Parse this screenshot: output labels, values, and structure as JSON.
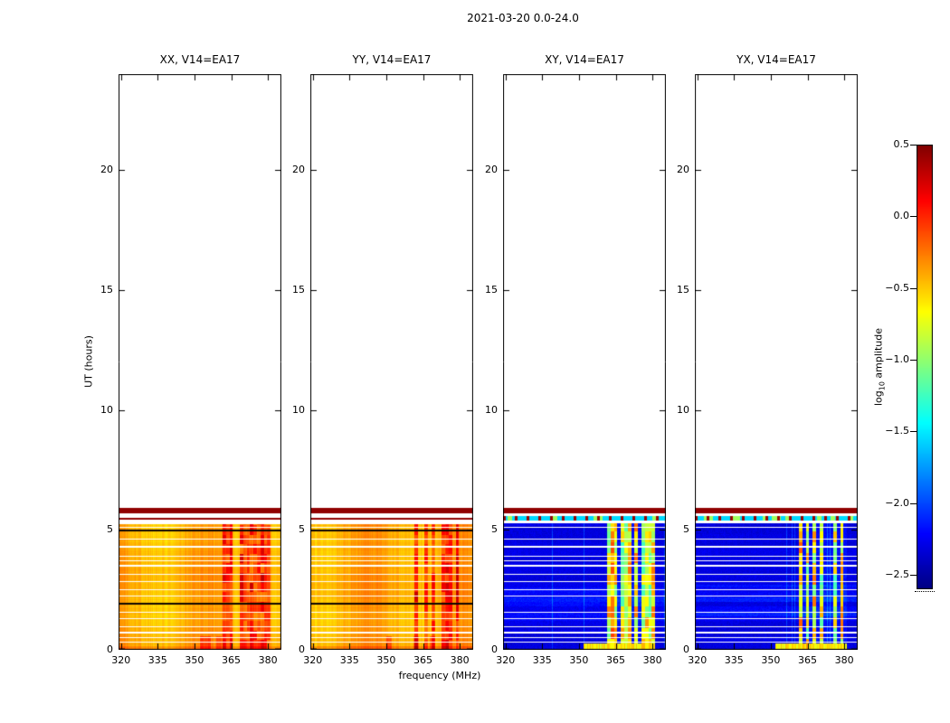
{
  "chart_data": {
    "type": "heatmap",
    "title": "2021-03-20 0.0-24.0",
    "xlabel": "frequency (MHz)",
    "ylabel": "UT (hours)",
    "xlim": [
      319,
      385.5
    ],
    "ylim": [
      0,
      24
    ],
    "xticks": [
      320,
      335,
      350,
      365,
      380
    ],
    "yticks": [
      0,
      5,
      10,
      15,
      20
    ],
    "colormap": "jet",
    "panels": [
      {
        "id": "XX",
        "label": "XX, V14=EA17",
        "kind": "parallel",
        "base": -0.42,
        "seed": 1
      },
      {
        "id": "YY",
        "label": "YY, V14=EA17",
        "kind": "parallel",
        "base": -0.4,
        "seed": 2
      },
      {
        "id": "XY",
        "label": "XY, V14=EA17",
        "kind": "cross",
        "base": -2.3,
        "seed": 3
      },
      {
        "id": "YX",
        "label": "YX, V14=EA17",
        "kind": "cross",
        "base": -2.3,
        "seed": 4
      }
    ],
    "colorbar": {
      "label_pre": "log",
      "label_sub": "10",
      "label_post": " amplitude",
      "ticks": [
        0.5,
        0.0,
        -0.5,
        -1.0,
        -1.5,
        -2.0,
        -2.5
      ],
      "vmin": -2.6,
      "vmax": 0.5
    },
    "data": {
      "time_max": 5.9,
      "maroon_band": [
        5.68,
        5.9
      ],
      "maroon_value": 0.45,
      "rfi_band_mhz": [
        361.5,
        381
      ],
      "gap_times": [
        0.32,
        0.5,
        0.72,
        0.95,
        1.3,
        1.55,
        2.25,
        2.5,
        2.85,
        3.15,
        3.5,
        3.72,
        3.9,
        4.3,
        4.62,
        5.1
      ],
      "parallel": {
        "white": [
          5.5,
          5.68
        ],
        "thin_line": [
          5.44,
          5.5
        ],
        "white2": [
          5.25,
          5.44
        ],
        "black_lines": [
          1.93,
          4.96
        ]
      },
      "cross": {
        "white": [
          5.58,
          5.68
        ],
        "dotted_row": [
          5.4,
          5.58
        ],
        "white2": [
          5.28,
          5.4
        ],
        "dot_value": 0.42,
        "row_background_value": -1.55,
        "row_green_value": -0.95
      }
    }
  }
}
